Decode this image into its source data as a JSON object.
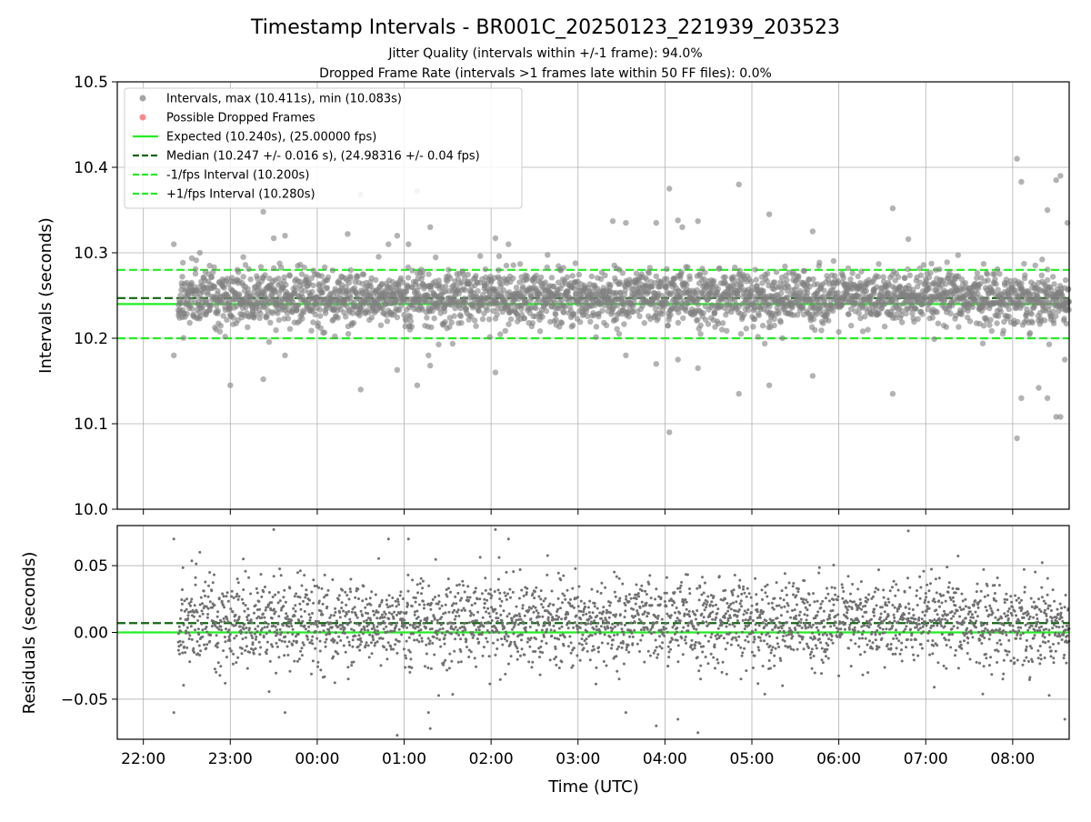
{
  "figure": {
    "title": "Timestamp Intervals - BR001C_20250123_221939_203523",
    "subtitle1": "Jitter Quality (intervals within +/-1 frame): 94.0%",
    "subtitle2": "Dropped Frame Rate (intervals >1 frames late within 50 FF files): 0.0%"
  },
  "colors": {
    "points": "#808080",
    "dropped": "#ff5555",
    "expected": "#22ee22",
    "median": "#116611",
    "interval": "#22ee22",
    "grid": "#b0b0b0"
  },
  "chart_data": [
    {
      "type": "scatter",
      "name": "intervals",
      "ylabel": "Intervals (seconds)",
      "ylim": [
        10.0,
        10.5
      ],
      "yticks": [
        "10.0",
        "10.1",
        "10.2",
        "10.3",
        "10.4",
        "10.5"
      ],
      "xlim_hours": [
        -2.3,
        8.65
      ],
      "grid": true,
      "legend_position": "upper-left",
      "legend": [
        {
          "label": "Intervals, max (10.411s), min (10.083s)",
          "kind": "point",
          "color": "#808080"
        },
        {
          "label": "Possible Dropped Frames",
          "kind": "point",
          "color": "#ff5555"
        },
        {
          "label": "Expected (10.240s), (25.00000 fps)",
          "kind": "solid",
          "color": "#22ee22"
        },
        {
          "label": "Median (10.247 +/- 0.016 s), (24.98316 +/- 0.04 fps)",
          "kind": "dashed",
          "color": "#116611"
        },
        {
          "label": "-1/fps Interval (10.200s)",
          "kind": "dashed",
          "color": "#22ee22"
        },
        {
          "label": "+1/fps Interval (10.280s)",
          "kind": "dashed",
          "color": "#22ee22"
        }
      ],
      "expected": 10.24,
      "median": 10.247,
      "lower": 10.2,
      "upper": 10.28,
      "max": 10.411,
      "min": 10.083,
      "series_time_range_hours": [
        -1.6,
        8.65
      ],
      "outliers": [
        {
          "t": -1.65,
          "y": 10.31
        },
        {
          "t": -1.65,
          "y": 10.18
        },
        {
          "t": -1.35,
          "y": 10.3
        },
        {
          "t": -1.0,
          "y": 10.145
        },
        {
          "t": -0.85,
          "y": 10.295
        },
        {
          "t": -0.62,
          "y": 10.348
        },
        {
          "t": -0.62,
          "y": 10.152
        },
        {
          "t": -0.5,
          "y": 10.317
        },
        {
          "t": -0.37,
          "y": 10.32
        },
        {
          "t": -0.37,
          "y": 10.18
        },
        {
          "t": 0.35,
          "y": 10.322
        },
        {
          "t": 0.5,
          "y": 10.368
        },
        {
          "t": 0.5,
          "y": 10.14
        },
        {
          "t": 0.82,
          "y": 10.31
        },
        {
          "t": 0.92,
          "y": 10.32
        },
        {
          "t": 0.92,
          "y": 10.163
        },
        {
          "t": 1.05,
          "y": 10.31
        },
        {
          "t": 1.15,
          "y": 10.372
        },
        {
          "t": 1.15,
          "y": 10.145
        },
        {
          "t": 1.3,
          "y": 10.33
        },
        {
          "t": 1.3,
          "y": 10.168
        },
        {
          "t": 1.28,
          "y": 10.18
        },
        {
          "t": 2.05,
          "y": 10.317
        },
        {
          "t": 2.05,
          "y": 10.16
        },
        {
          "t": 2.2,
          "y": 10.31
        },
        {
          "t": 3.4,
          "y": 10.337
        },
        {
          "t": 3.55,
          "y": 10.335
        },
        {
          "t": 3.55,
          "y": 10.18
        },
        {
          "t": 3.9,
          "y": 10.335
        },
        {
          "t": 3.9,
          "y": 10.17
        },
        {
          "t": 4.05,
          "y": 10.375
        },
        {
          "t": 4.05,
          "y": 10.09
        },
        {
          "t": 4.15,
          "y": 10.338
        },
        {
          "t": 4.2,
          "y": 10.33
        },
        {
          "t": 4.15,
          "y": 10.175
        },
        {
          "t": 4.38,
          "y": 10.337
        },
        {
          "t": 4.38,
          "y": 10.165
        },
        {
          "t": 4.85,
          "y": 10.38
        },
        {
          "t": 4.85,
          "y": 10.135
        },
        {
          "t": 5.2,
          "y": 10.345
        },
        {
          "t": 5.2,
          "y": 10.145
        },
        {
          "t": 5.7,
          "y": 10.325
        },
        {
          "t": 5.7,
          "y": 10.156
        },
        {
          "t": 6.62,
          "y": 10.352
        },
        {
          "t": 6.62,
          "y": 10.135
        },
        {
          "t": 6.8,
          "y": 10.316
        },
        {
          "t": 8.05,
          "y": 10.41
        },
        {
          "t": 8.05,
          "y": 10.083
        },
        {
          "t": 8.1,
          "y": 10.383
        },
        {
          "t": 8.1,
          "y": 10.13
        },
        {
          "t": 8.3,
          "y": 10.142
        },
        {
          "t": 8.4,
          "y": 10.35
        },
        {
          "t": 8.4,
          "y": 10.13
        },
        {
          "t": 8.5,
          "y": 10.385
        },
        {
          "t": 8.55,
          "y": 10.39
        },
        {
          "t": 8.5,
          "y": 10.108
        },
        {
          "t": 8.55,
          "y": 10.108
        },
        {
          "t": 8.6,
          "y": 10.175
        },
        {
          "t": 8.63,
          "y": 10.335
        }
      ]
    },
    {
      "type": "scatter",
      "name": "residuals",
      "ylabel": "Residuals (seconds)",
      "xlabel": "Time (UTC)",
      "ylim": [
        -0.08,
        0.08
      ],
      "yticks": [
        "−0.05",
        "0.00",
        "0.05"
      ],
      "ytick_values": [
        -0.05,
        0.0,
        0.05
      ],
      "xticks": [
        "22:00",
        "23:00",
        "00:00",
        "01:00",
        "02:00",
        "03:00",
        "04:00",
        "05:00",
        "06:00",
        "07:00",
        "08:00"
      ],
      "xtick_hours": [
        -2,
        -1,
        0,
        1,
        2,
        3,
        4,
        5,
        6,
        7,
        8
      ],
      "xlim_hours": [
        -2.3,
        8.65
      ],
      "expected": 0.0,
      "median": 0.007,
      "grid": true
    }
  ]
}
